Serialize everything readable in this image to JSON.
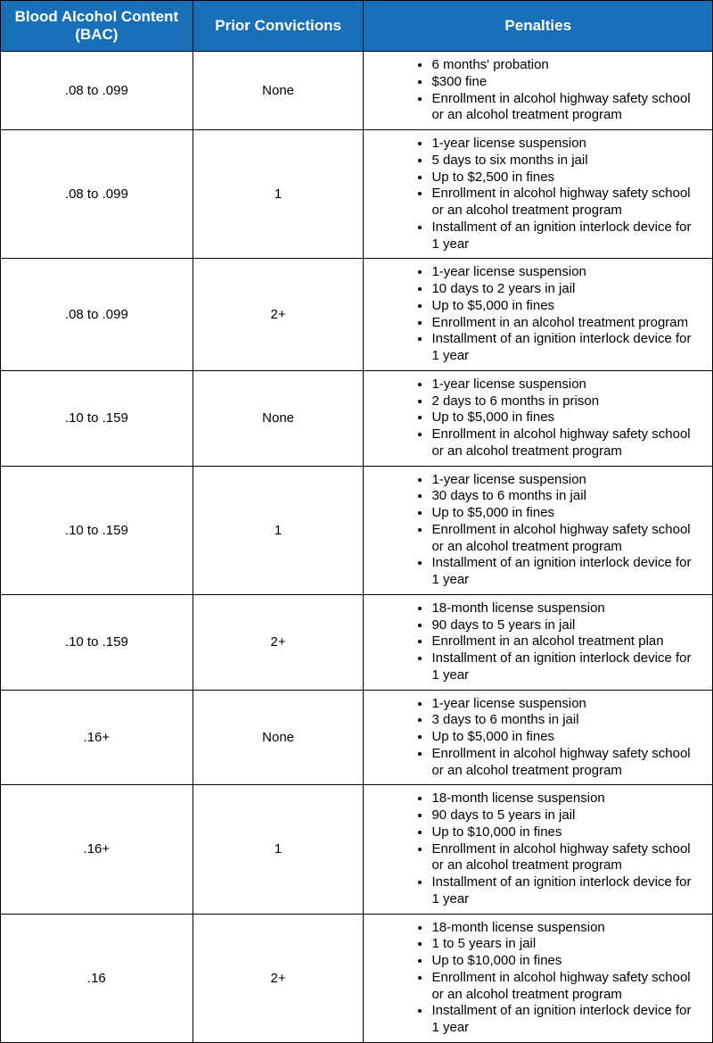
{
  "table": {
    "header_bg": "#1770b8",
    "header_color": "#ffffff",
    "border_color": "#000000",
    "columns": [
      "Blood Alcohol Content (BAC)",
      "Prior Convictions",
      "Penalties"
    ],
    "rows": [
      {
        "bac": ".08 to .099",
        "prior": "None",
        "penalties": [
          "6 months' probation",
          "$300 fine",
          "Enrollment in alcohol highway safety school or an alcohol treatment program"
        ]
      },
      {
        "bac": ".08 to .099",
        "prior": "1",
        "penalties": [
          "1-year license suspension",
          "5 days to six months in jail",
          "Up to $2,500 in fines",
          "Enrollment in alcohol highway safety school or an alcohol treatment program",
          "Installment of an ignition interlock device for 1 year"
        ]
      },
      {
        "bac": ".08 to .099",
        "prior": "2+",
        "penalties": [
          "1-year license suspension",
          "10 days to 2 years in jail",
          "Up to $5,000 in fines",
          "Enrollment in an alcohol treatment program",
          "Installment of an ignition interlock device for 1 year"
        ]
      },
      {
        "bac": ".10 to .159",
        "prior": "None",
        "penalties": [
          "1-year license suspension",
          "2 days to 6 months in prison",
          "Up to $5,000 in fines",
          "Enrollment in alcohol highway safety school or an alcohol treatment program"
        ]
      },
      {
        "bac": ".10 to .159",
        "prior": "1",
        "penalties": [
          "1-year license suspension",
          "30 days to 6 months in jail",
          "Up to $5,000 in fines",
          "Enrollment in alcohol highway safety school or an alcohol treatment program",
          "Installment of an ignition interlock device for 1 year"
        ]
      },
      {
        "bac": ".10 to .159",
        "prior": "2+",
        "penalties": [
          "18-month license suspension",
          "90 days to 5 years in jail",
          "Enrollment in an alcohol treatment plan",
          "Installment of an ignition interlock device for 1 year"
        ]
      },
      {
        "bac": ".16+",
        "prior": "None",
        "penalties": [
          "1-year license suspension",
          "3 days to 6 months in jail",
          "Up to $5,000 in fines",
          "Enrollment in alcohol highway safety school or an alcohol treatment program"
        ]
      },
      {
        "bac": ".16+",
        "prior": "1",
        "penalties": [
          "18-month license suspension",
          "90 days to 5 years in jail",
          "Up to $10,000 in fines",
          "Enrollment in alcohol highway safety school or an alcohol treatment program",
          "Installment of an ignition interlock device for 1 year"
        ]
      },
      {
        "bac": ".16",
        "prior": "2+",
        "penalties": [
          "18-month license suspension",
          "1 to 5 years in jail",
          "Up to $10,000 in fines",
          "Enrollment in alcohol highway safety school or an alcohol treatment program",
          "Installment of an ignition interlock device for 1 year"
        ]
      }
    ]
  }
}
